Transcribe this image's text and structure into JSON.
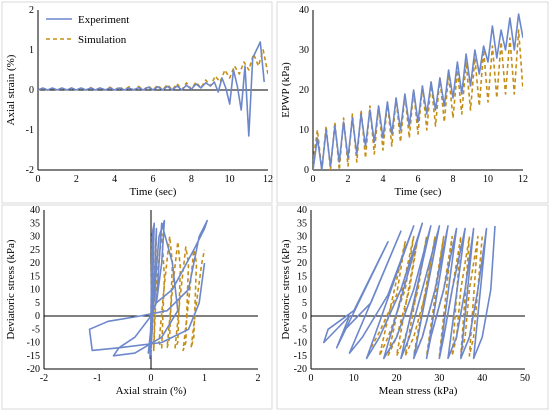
{
  "colors": {
    "experiment": "#6d87cb",
    "simulation": "#c48e16",
    "axis": "#000000",
    "frame": "#d9d9d9"
  },
  "legend": {
    "experiment": "Experiment",
    "simulation": "Simulation"
  },
  "chart_data": [
    {
      "type": "line",
      "panel": "top-left",
      "xlabel": "Time (sec)",
      "ylabel": "Axial strain (%)",
      "xlim": [
        0,
        12
      ],
      "ylim": [
        -2,
        2
      ],
      "xticks": [
        "0",
        "2",
        "4",
        "6",
        "8",
        "10",
        "12"
      ],
      "yticks": [
        "-2",
        "-1",
        "0",
        "1",
        "2"
      ],
      "legend_position": "top-left",
      "series": [
        {
          "name": "Experiment",
          "style": "solid",
          "x": [
            0,
            0.25,
            0.5,
            0.75,
            1.0,
            1.25,
            1.5,
            1.75,
            2.0,
            2.25,
            2.5,
            2.75,
            3.0,
            3.25,
            3.5,
            3.75,
            4.0,
            4.25,
            4.5,
            4.75,
            5.0,
            5.25,
            5.5,
            5.75,
            6.0,
            6.25,
            6.5,
            6.75,
            7.0,
            7.25,
            7.5,
            7.75,
            8.0,
            8.25,
            8.5,
            8.75,
            9.0,
            9.2,
            9.4,
            9.6,
            9.8,
            10.0,
            10.2,
            10.4,
            10.6,
            10.8,
            11.0,
            11.2,
            11.4,
            11.6,
            11.8
          ],
          "y": [
            0,
            0.05,
            0,
            0.05,
            0,
            0.05,
            0,
            0.05,
            0,
            0.05,
            0,
            0.05,
            0,
            0.05,
            0,
            0.05,
            0,
            0.05,
            0,
            0.05,
            0,
            0.06,
            0,
            0.07,
            0,
            0.08,
            0,
            0.09,
            0,
            0.1,
            0,
            0.12,
            0.02,
            0.15,
            0.05,
            0.18,
            0.1,
            0.2,
            -0.05,
            0.3,
            0.05,
            -0.35,
            0.5,
            0.1,
            -0.5,
            0.6,
            -1.15,
            0.8,
            1.0,
            1.2,
            0.2
          ]
        },
        {
          "name": "Simulation",
          "style": "dashed",
          "x": [
            0,
            0.25,
            0.5,
            0.75,
            1.0,
            1.25,
            1.5,
            1.75,
            2.0,
            2.25,
            2.5,
            2.75,
            3.0,
            3.25,
            3.5,
            3.75,
            4.0,
            4.25,
            4.5,
            4.75,
            5.0,
            5.25,
            5.5,
            5.75,
            6.0,
            6.25,
            6.5,
            6.75,
            7.0,
            7.25,
            7.5,
            7.75,
            8.0,
            8.25,
            8.5,
            8.75,
            9.0,
            9.25,
            9.5,
            9.75,
            10.0,
            10.25,
            10.5,
            10.75,
            11.0,
            11.25,
            11.5,
            11.75,
            12.0
          ],
          "y": [
            0,
            0.04,
            0,
            0.04,
            0,
            0.05,
            0,
            0.05,
            0,
            0.05,
            0,
            0.06,
            0,
            0.06,
            0,
            0.07,
            0,
            0.08,
            0,
            0.08,
            0,
            0.09,
            0,
            0.1,
            0,
            0.12,
            0,
            0.14,
            0,
            0.16,
            0,
            0.18,
            0.02,
            0.2,
            0.05,
            0.25,
            0.1,
            0.35,
            0.2,
            0.5,
            0.3,
            0.6,
            0.4,
            0.7,
            0.5,
            0.9,
            0.6,
            1.0,
            0.4
          ]
        }
      ]
    },
    {
      "type": "line",
      "panel": "top-right",
      "xlabel": "Time (sec)",
      "ylabel": "EPWP (kPa)",
      "xlim": [
        0,
        12
      ],
      "ylim": [
        0,
        40
      ],
      "xticks": [
        "0",
        "2",
        "4",
        "6",
        "8",
        "10",
        "12"
      ],
      "yticks": [
        "0",
        "10",
        "20",
        "30",
        "40"
      ],
      "series": [
        {
          "name": "Experiment",
          "style": "solid",
          "x": [
            0,
            0.25,
            0.5,
            0.75,
            1.0,
            1.25,
            1.5,
            1.75,
            2.0,
            2.25,
            2.5,
            2.75,
            3.0,
            3.25,
            3.5,
            3.75,
            4.0,
            4.25,
            4.5,
            4.75,
            5.0,
            5.25,
            5.5,
            5.75,
            6.0,
            6.25,
            6.5,
            6.75,
            7.0,
            7.25,
            7.5,
            7.75,
            8.0,
            8.25,
            8.5,
            8.75,
            9.0,
            9.25,
            9.5,
            9.75,
            10.0,
            10.25,
            10.5,
            10.75,
            11.0,
            11.25,
            11.5,
            11.75,
            12.0
          ],
          "y": [
            0,
            8,
            0,
            10,
            1,
            11,
            2,
            12,
            3,
            13,
            4,
            14,
            6,
            15,
            7,
            16,
            8,
            17,
            9,
            18,
            10,
            19,
            11,
            20,
            12,
            21,
            14,
            22,
            15,
            23,
            16,
            25,
            18,
            27,
            19,
            29,
            21,
            30,
            24,
            31,
            27,
            36,
            28,
            35,
            30,
            38,
            30,
            39,
            33
          ]
        },
        {
          "name": "Simulation",
          "style": "dashed",
          "x": [
            0,
            0.25,
            0.5,
            0.75,
            1.0,
            1.25,
            1.5,
            1.75,
            2.0,
            2.25,
            2.5,
            2.75,
            3.0,
            3.25,
            3.5,
            3.75,
            4.0,
            4.25,
            4.5,
            4.75,
            5.0,
            5.25,
            5.5,
            5.75,
            6.0,
            6.25,
            6.5,
            6.75,
            7.0,
            7.25,
            7.5,
            7.75,
            8.0,
            8.25,
            8.5,
            8.75,
            9.0,
            9.25,
            9.5,
            9.75,
            10.0,
            10.25,
            10.5,
            10.75,
            11.0,
            11.25,
            11.5,
            11.75,
            12.0
          ],
          "y": [
            2,
            10,
            0,
            11,
            0,
            12,
            0,
            13,
            1,
            14,
            2,
            15,
            3,
            16,
            4,
            16,
            5,
            17,
            6,
            18,
            7,
            19,
            8,
            20,
            9,
            21,
            10,
            22,
            11,
            23,
            12,
            24,
            13,
            25,
            14,
            27,
            15,
            28,
            16,
            30,
            17,
            31,
            18,
            32,
            19,
            33,
            19,
            35,
            20
          ]
        }
      ]
    },
    {
      "type": "line",
      "panel": "bottom-left",
      "xlabel": "Axial strain (%)",
      "ylabel": "Deviatoric stress (kPa)",
      "xlim": [
        -2,
        2
      ],
      "ylim": [
        -20,
        40
      ],
      "xticks": [
        "-2",
        "-1",
        "0",
        "1",
        "2"
      ],
      "yticks": [
        "-20",
        "-15",
        "-10",
        "-5",
        "0",
        "5",
        "10",
        "15",
        "20",
        "25",
        "30",
        "35",
        "40"
      ],
      "series": [
        {
          "name": "Experiment",
          "style": "solid",
          "x": [
            0,
            0.02,
            0.05,
            0.03,
            0,
            -0.02,
            0,
            0.04,
            0.06,
            0.03,
            0,
            0.05,
            0.1,
            0.08,
            0.03,
            -0.05,
            0.05,
            0.15,
            0.25,
            0.2,
            0.1,
            0,
            -0.3,
            -0.6,
            -0.7,
            -0.3,
            0.2,
            0.5,
            0.4,
            0.2,
            0.1,
            0.4,
            0.8,
            1.0,
            1.05,
            0.9,
            0.7,
            0.3,
            -0.2,
            -0.8,
            -1.15,
            -1.1,
            -0.6,
            0.2,
            0.7,
            0.9,
            1.0
          ],
          "y": [
            0,
            30,
            34,
            10,
            -10,
            -16,
            0,
            32,
            35,
            10,
            -12,
            5,
            33,
            20,
            0,
            -14,
            5,
            30,
            36,
            20,
            5,
            0,
            -8,
            -12,
            -15,
            -14,
            -8,
            2,
            20,
            35,
            5,
            10,
            25,
            33,
            36,
            30,
            10,
            2,
            0,
            -2,
            -5,
            -13,
            -12,
            -10,
            -5,
            5,
            20
          ]
        },
        {
          "name": "Simulation",
          "style": "dashed",
          "x": [
            0,
            0.02,
            0.04,
            0.02,
            0,
            0.05,
            0.1,
            0.08,
            0.05,
            0.1,
            0.2,
            0.25,
            0.2,
            0.15,
            0.25,
            0.35,
            0.4,
            0.35,
            0.3,
            0.4,
            0.5,
            0.55,
            0.5,
            0.45,
            0.55,
            0.65,
            0.7,
            0.65,
            0.6,
            0.7,
            0.8,
            0.85,
            0.8,
            0.75,
            0.85,
            0.95,
            1.0
          ],
          "y": [
            0,
            30,
            33,
            -5,
            -15,
            10,
            32,
            10,
            -13,
            12,
            31,
            15,
            -12,
            -10,
            12,
            30,
            20,
            -8,
            -12,
            10,
            28,
            18,
            -10,
            -12,
            8,
            26,
            20,
            -10,
            -13,
            5,
            25,
            20,
            -8,
            -12,
            5,
            20,
            25
          ]
        }
      ]
    },
    {
      "type": "line",
      "panel": "bottom-right",
      "xlabel": "Mean stress (kPa)",
      "ylabel": "Deviatoric stress (kPa)",
      "xlim": [
        0,
        50
      ],
      "ylim": [
        -20,
        40
      ],
      "xticks": [
        "0",
        "10",
        "20",
        "30",
        "40",
        "50"
      ],
      "yticks": [
        "-20",
        "-15",
        "-10",
        "-5",
        "0",
        "5",
        "10",
        "15",
        "20",
        "25",
        "30",
        "35",
        "40"
      ],
      "series": [
        {
          "name": "Experiment",
          "style": "solid",
          "x": [
            43,
            42,
            40,
            38,
            41,
            39,
            37,
            35,
            38,
            36,
            34,
            32,
            36,
            33,
            31,
            30,
            34,
            31,
            28,
            27,
            32,
            29,
            26,
            24,
            30,
            26,
            23,
            21,
            28,
            24,
            20,
            17,
            26,
            21,
            16,
            13,
            24,
            18,
            12,
            9,
            21,
            14,
            8,
            6,
            18,
            10,
            4,
            3,
            9,
            6
          ],
          "y": [
            34,
            10,
            -8,
            -16,
            33,
            10,
            -8,
            -16,
            33,
            10,
            -8,
            -16,
            33,
            10,
            -8,
            -16,
            33,
            10,
            -8,
            -16,
            34,
            10,
            -8,
            -16,
            34,
            10,
            -8,
            -16,
            34,
            10,
            -8,
            -16,
            35,
            10,
            -8,
            -16,
            34,
            8,
            -8,
            -14,
            32,
            5,
            -5,
            -12,
            28,
            2,
            -5,
            -10,
            0,
            -12
          ]
        },
        {
          "name": "Simulation",
          "style": "dashed",
          "x": [
            40,
            39,
            38,
            37,
            39,
            37,
            36,
            35,
            37,
            35,
            34,
            33,
            35,
            33,
            31,
            30,
            33,
            31,
            28,
            27,
            31,
            29,
            26,
            24,
            29,
            27,
            24,
            22,
            27,
            25,
            22,
            20,
            25,
            23,
            20,
            18,
            24,
            22,
            18,
            16,
            22,
            20,
            16,
            14
          ],
          "y": [
            30,
            10,
            -8,
            -15,
            30,
            10,
            -8,
            -15,
            30,
            10,
            -8,
            -15,
            30,
            10,
            -8,
            -15,
            30,
            10,
            -8,
            -15,
            30,
            10,
            -8,
            -15,
            30,
            10,
            -8,
            -15,
            30,
            10,
            -8,
            -15,
            30,
            10,
            -8,
            -15,
            30,
            10,
            -8,
            -15,
            28,
            8,
            -6,
            -12
          ]
        }
      ]
    }
  ]
}
